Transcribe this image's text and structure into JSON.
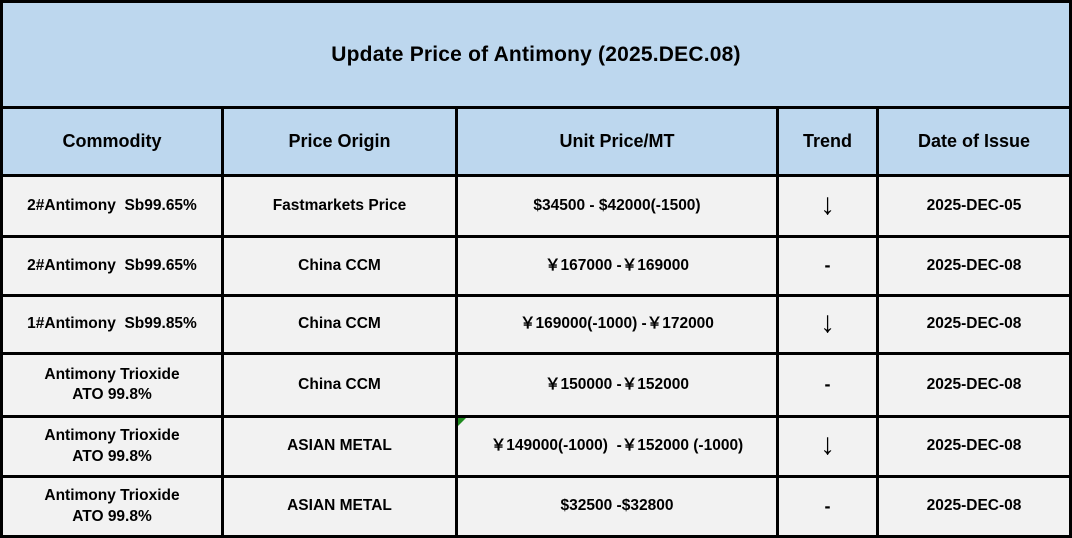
{
  "title": "Update Price of Antimony (2025.DEC.08)",
  "table": {
    "headers": {
      "commodity": "Commodity",
      "origin": "Price Origin",
      "price": "Unit Price/MT",
      "trend": "Trend",
      "date": "Date of Issue"
    },
    "rows": [
      {
        "commodity": "2#Antimony  Sb99.65%",
        "origin": "Fastmarkets Price",
        "price": "$34500 - $42000(-1500)",
        "trend": "↓",
        "trend_direction": "down",
        "date": "2025-DEC-05"
      },
      {
        "commodity": "2#Antimony  Sb99.65%",
        "origin": "China CCM",
        "price": "￥167000 -￥169000",
        "trend": "-",
        "trend_direction": "flat",
        "date": "2025-DEC-08"
      },
      {
        "commodity": "1#Antimony  Sb99.85%",
        "origin": "China CCM",
        "price": "￥169000(-1000) -￥172000",
        "trend": "↓",
        "trend_direction": "down",
        "date": "2025-DEC-08"
      },
      {
        "commodity": "Antimony Trioxide\nATO 99.8%",
        "origin": "China CCM",
        "price": "￥150000 -￥152000",
        "trend": "-",
        "trend_direction": "flat",
        "date": "2025-DEC-08"
      },
      {
        "commodity": "Antimony Trioxide\nATO 99.8%",
        "origin": "ASIAN METAL",
        "price": "￥149000(-1000)  -￥152000 (-1000)",
        "trend": "↓",
        "trend_direction": "down",
        "date": "2025-DEC-08",
        "note_indicator": "green-corner-triangle"
      },
      {
        "commodity": "Antimony Trioxide\nATO 99.8%",
        "origin": "ASIAN METAL",
        "price": "$32500 -$32800",
        "trend": "-",
        "trend_direction": "flat",
        "date": "2025-DEC-08"
      }
    ]
  },
  "colors": {
    "header_bg": "#BDD7EE",
    "row_bg": "#F2F2F2",
    "border": "#000000",
    "note_indicator_green": "#1F8A1F",
    "text": "#000000"
  }
}
